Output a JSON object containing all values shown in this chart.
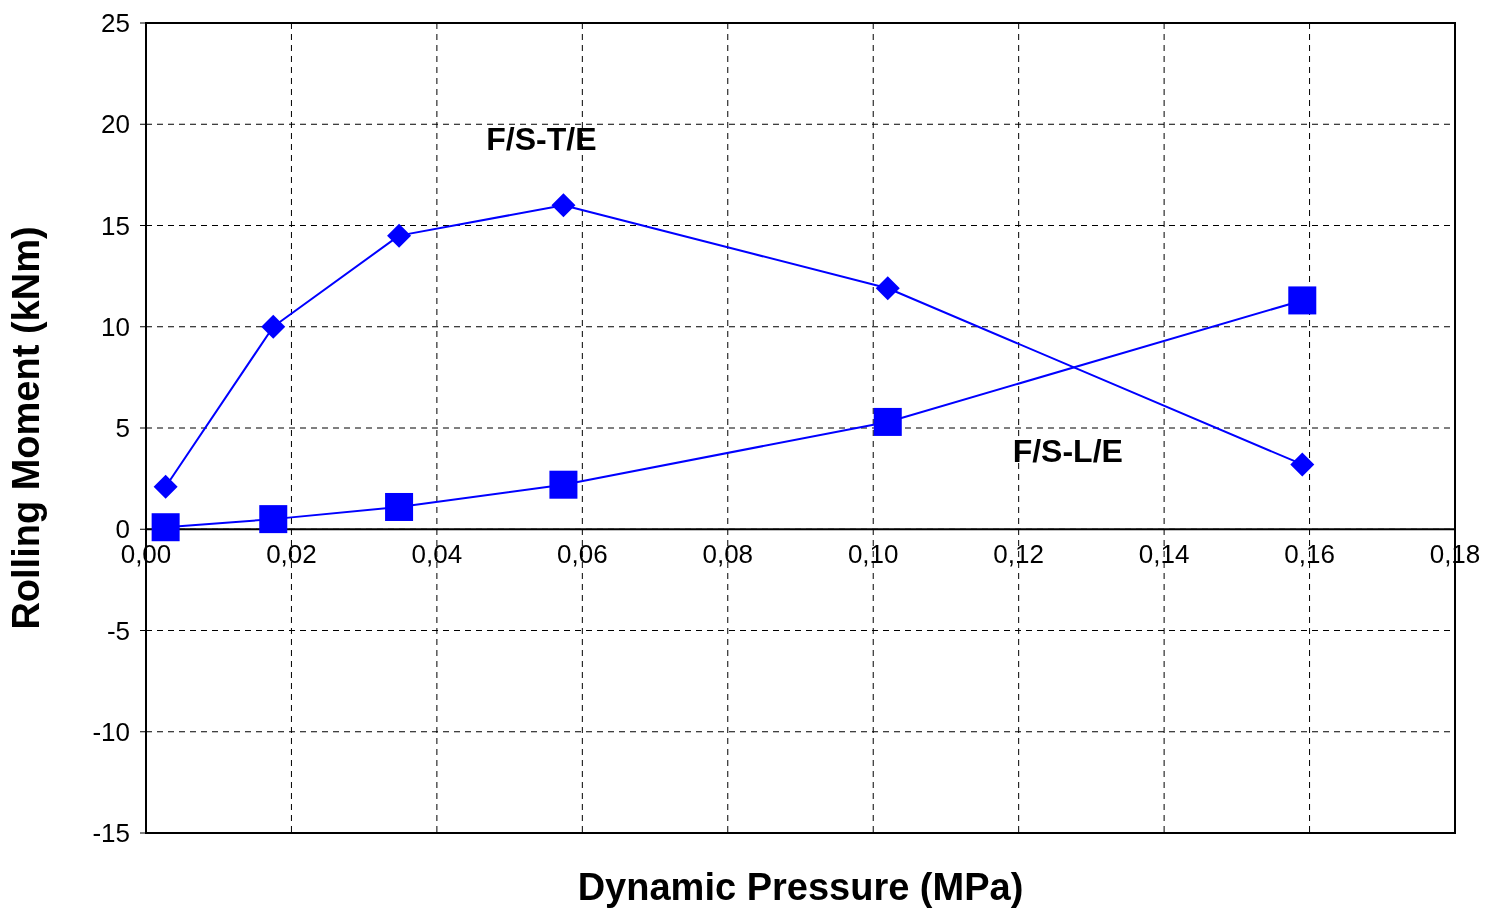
{
  "chart_data": {
    "type": "line",
    "xlabel": "Dynamic Pressure (MPa)",
    "ylabel": "Rolling Moment (kNm)",
    "xlim": [
      0,
      0.18
    ],
    "xticks": [
      {
        "value": 0,
        "label": "0,00"
      },
      {
        "value": 0.02,
        "label": "0,02"
      },
      {
        "value": 0.04,
        "label": "0,04"
      },
      {
        "value": 0.06,
        "label": "0,06"
      },
      {
        "value": 0.08,
        "label": "0,08"
      },
      {
        "value": 0.1,
        "label": "0,10"
      },
      {
        "value": 0.12,
        "label": "0,12"
      },
      {
        "value": 0.14,
        "label": "0,14"
      },
      {
        "value": 0.16,
        "label": "0,16"
      },
      {
        "value": 0.18,
        "label": "0,18"
      }
    ],
    "ylim": [
      -15,
      25
    ],
    "yticks": [
      -15,
      -10,
      -5,
      0,
      5,
      10,
      15,
      20,
      25
    ],
    "grid": true,
    "line_style": "solid",
    "series": [
      {
        "name": "F/S-T/E",
        "color": "#0000ff",
        "marker": "diamond",
        "x": [
          0.0027,
          0.0175,
          0.0348,
          0.0574,
          0.102,
          0.159
        ],
        "values": [
          2.1,
          10.0,
          14.5,
          16.0,
          11.9,
          3.2
        ]
      },
      {
        "name": "F/S-L/E",
        "color": "#0000ff",
        "marker": "square",
        "x": [
          0.0027,
          0.0175,
          0.0348,
          0.0574,
          0.102,
          0.159
        ],
        "values": [
          0.1,
          0.5,
          1.1,
          2.2,
          5.3,
          11.3
        ]
      }
    ]
  }
}
